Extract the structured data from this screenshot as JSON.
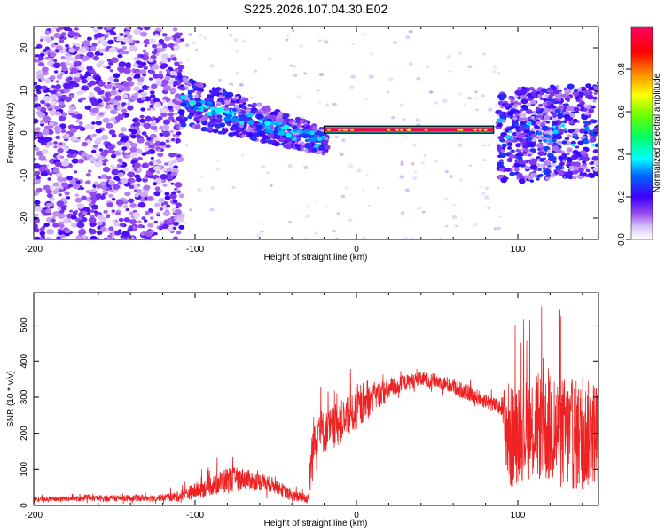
{
  "figure": {
    "title": "S225.2026.107.04.30.E02"
  },
  "chart_data": [
    {
      "type": "heatmap",
      "name": "spectrogram",
      "xlabel": "Height of straight line (km)",
      "ylabel": "Frequency (Hz)",
      "xlim": [
        -200,
        150
      ],
      "ylim": [
        -25,
        25
      ],
      "x_ticks": [
        -200,
        -100,
        0,
        100
      ],
      "y_ticks": [
        -20,
        -10,
        0,
        10,
        20
      ],
      "colorbar": {
        "label": "Normalized spectral amplitude",
        "range": [
          0,
          1
        ],
        "ticks": [
          0,
          0.2,
          0.4,
          0.6,
          0.8
        ],
        "tick_labels": [
          "0.0",
          "0.2",
          "0.4",
          "0.6",
          "0.8"
        ],
        "colors": [
          "#ffffff",
          "#c9a6f5",
          "#8a2be2",
          "#3300ff",
          "#00ffff",
          "#00ff66",
          "#80ff00",
          "#ffff00",
          "#ff8800",
          "#ff0000",
          "#ff0066"
        ]
      },
      "signal_line": {
        "x_range": [
          -20,
          85
        ],
        "frequency_hz": 0.8,
        "amplitude": 0.95
      },
      "regions": [
        {
          "x_range": [
            -200,
            -110
          ],
          "frequency_range": [
            -25,
            25
          ],
          "description": "broadband noise",
          "amplitude_range": [
            0.05,
            0.2
          ]
        },
        {
          "x_range": [
            -110,
            -20
          ],
          "frequency_trend_hz": [
            8,
            -2
          ],
          "amplitude_range": [
            0.1,
            0.4
          ]
        },
        {
          "x_range": [
            88,
            150
          ],
          "frequency_range": [
            -15,
            12
          ],
          "amplitude_range": [
            0.1,
            0.35
          ]
        }
      ]
    },
    {
      "type": "line",
      "name": "snr",
      "xlabel": "Height of straight line (km)",
      "ylabel": "SNR (10 * v/v)",
      "xlim": [
        -200,
        150
      ],
      "ylim": [
        0,
        590
      ],
      "x_ticks": [
        -200,
        -100,
        0,
        100
      ],
      "y_ticks": [
        0,
        100,
        200,
        300,
        400,
        500
      ],
      "color": "#ee2222",
      "series": [
        {
          "name": "SNR",
          "x": [
            -200,
            -180,
            -160,
            -140,
            -120,
            -110,
            -100,
            -90,
            -80,
            -70,
            -60,
            -50,
            -40,
            -30,
            -28,
            -25,
            -20,
            -10,
            0,
            10,
            20,
            30,
            40,
            50,
            60,
            70,
            80,
            90,
            93,
            95,
            100,
            110,
            120,
            130,
            140,
            150
          ],
          "y": [
            18,
            18,
            20,
            20,
            22,
            25,
            40,
            55,
            70,
            75,
            65,
            55,
            25,
            20,
            120,
            220,
            200,
            230,
            260,
            300,
            320,
            340,
            350,
            345,
            330,
            310,
            290,
            270,
            220,
            180,
            200,
            220,
            210,
            200,
            190,
            210
          ],
          "envelope_max": [
            30,
            32,
            35,
            40,
            40,
            60,
            90,
            120,
            160,
            130,
            110,
            90,
            60,
            60,
            340,
            360,
            330,
            380,
            390,
            400,
            390,
            380,
            385,
            380,
            370,
            360,
            340,
            320,
            600,
            560,
            520,
            560,
            580,
            590,
            580,
            560
          ],
          "envelope_min": [
            5,
            5,
            5,
            5,
            5,
            5,
            10,
            20,
            25,
            25,
            20,
            15,
            5,
            5,
            40,
            80,
            120,
            160,
            200,
            250,
            280,
            300,
            310,
            305,
            290,
            280,
            260,
            250,
            30,
            20,
            30,
            20,
            20,
            15,
            20,
            30
          ]
        }
      ]
    }
  ]
}
